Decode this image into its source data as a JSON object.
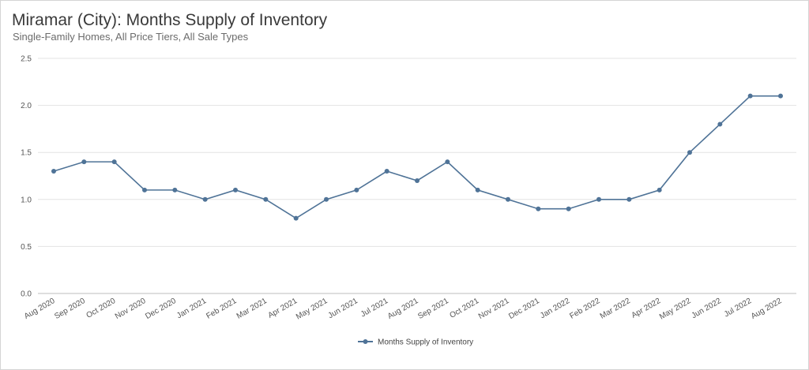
{
  "chart_data": {
    "type": "line",
    "title": "Miramar (City): Months Supply of Inventory",
    "subtitle": "Single-Family Homes, All Price Tiers, All Sale Types",
    "xlabel": "",
    "ylabel": "",
    "ylim": [
      0,
      2.5
    ],
    "yticks": [
      "0.0",
      "0.5",
      "1.0",
      "1.5",
      "2.0",
      "2.5"
    ],
    "yticks_values": [
      0,
      0.5,
      1.0,
      1.5,
      2.0,
      2.5
    ],
    "grid": true,
    "legend_position": "bottom-center",
    "categories": [
      "Aug 2020",
      "Sep 2020",
      "Oct 2020",
      "Nov 2020",
      "Dec 2020",
      "Jan 2021",
      "Feb 2021",
      "Mar 2021",
      "Apr 2021",
      "May 2021",
      "Jun 2021",
      "Jul 2021",
      "Aug 2021",
      "Sep 2021",
      "Oct 2021",
      "Nov 2021",
      "Dec 2021",
      "Jan 2022",
      "Feb 2022",
      "Mar 2022",
      "Apr 2022",
      "May 2022",
      "Jun 2022",
      "Jul 2022",
      "Aug 2022"
    ],
    "series": [
      {
        "name": "Months Supply of Inventory",
        "color": "#4f7397",
        "values": [
          1.3,
          1.4,
          1.4,
          1.1,
          1.1,
          1.0,
          1.1,
          1.0,
          0.8,
          1.0,
          1.1,
          1.3,
          1.2,
          1.4,
          1.1,
          1.0,
          0.9,
          0.9,
          1.0,
          1.0,
          1.1,
          1.5,
          1.8,
          2.1,
          2.1
        ]
      }
    ]
  }
}
